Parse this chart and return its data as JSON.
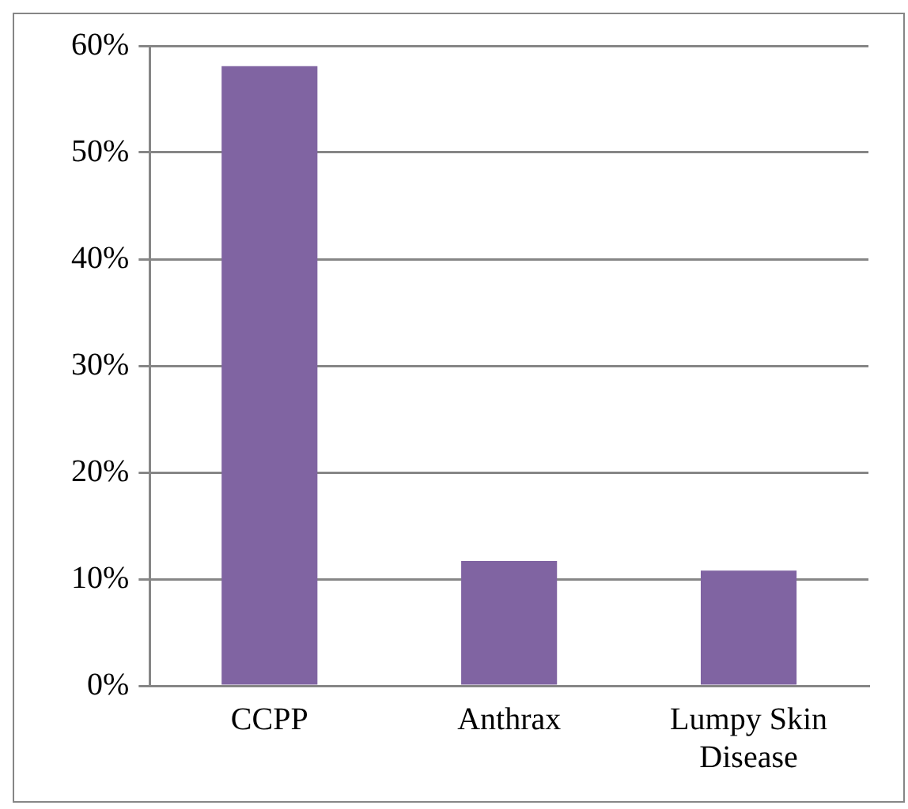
{
  "chart_data": {
    "type": "bar",
    "categories": [
      "CCPP",
      "Anthrax",
      "Lumpy Skin Disease"
    ],
    "values": [
      58.1,
      11.7,
      10.8
    ],
    "color": "#8064a2",
    "ylim": [
      0,
      60
    ],
    "yticks": [
      {
        "value": 0,
        "label": "0%"
      },
      {
        "value": 10,
        "label": "10%"
      },
      {
        "value": 20,
        "label": "20%"
      },
      {
        "value": 30,
        "label": "30%"
      },
      {
        "value": 40,
        "label": "40%"
      },
      {
        "value": 50,
        "label": "50%"
      },
      {
        "value": 60,
        "label": "60%"
      }
    ],
    "grid": "y",
    "legend": false
  }
}
